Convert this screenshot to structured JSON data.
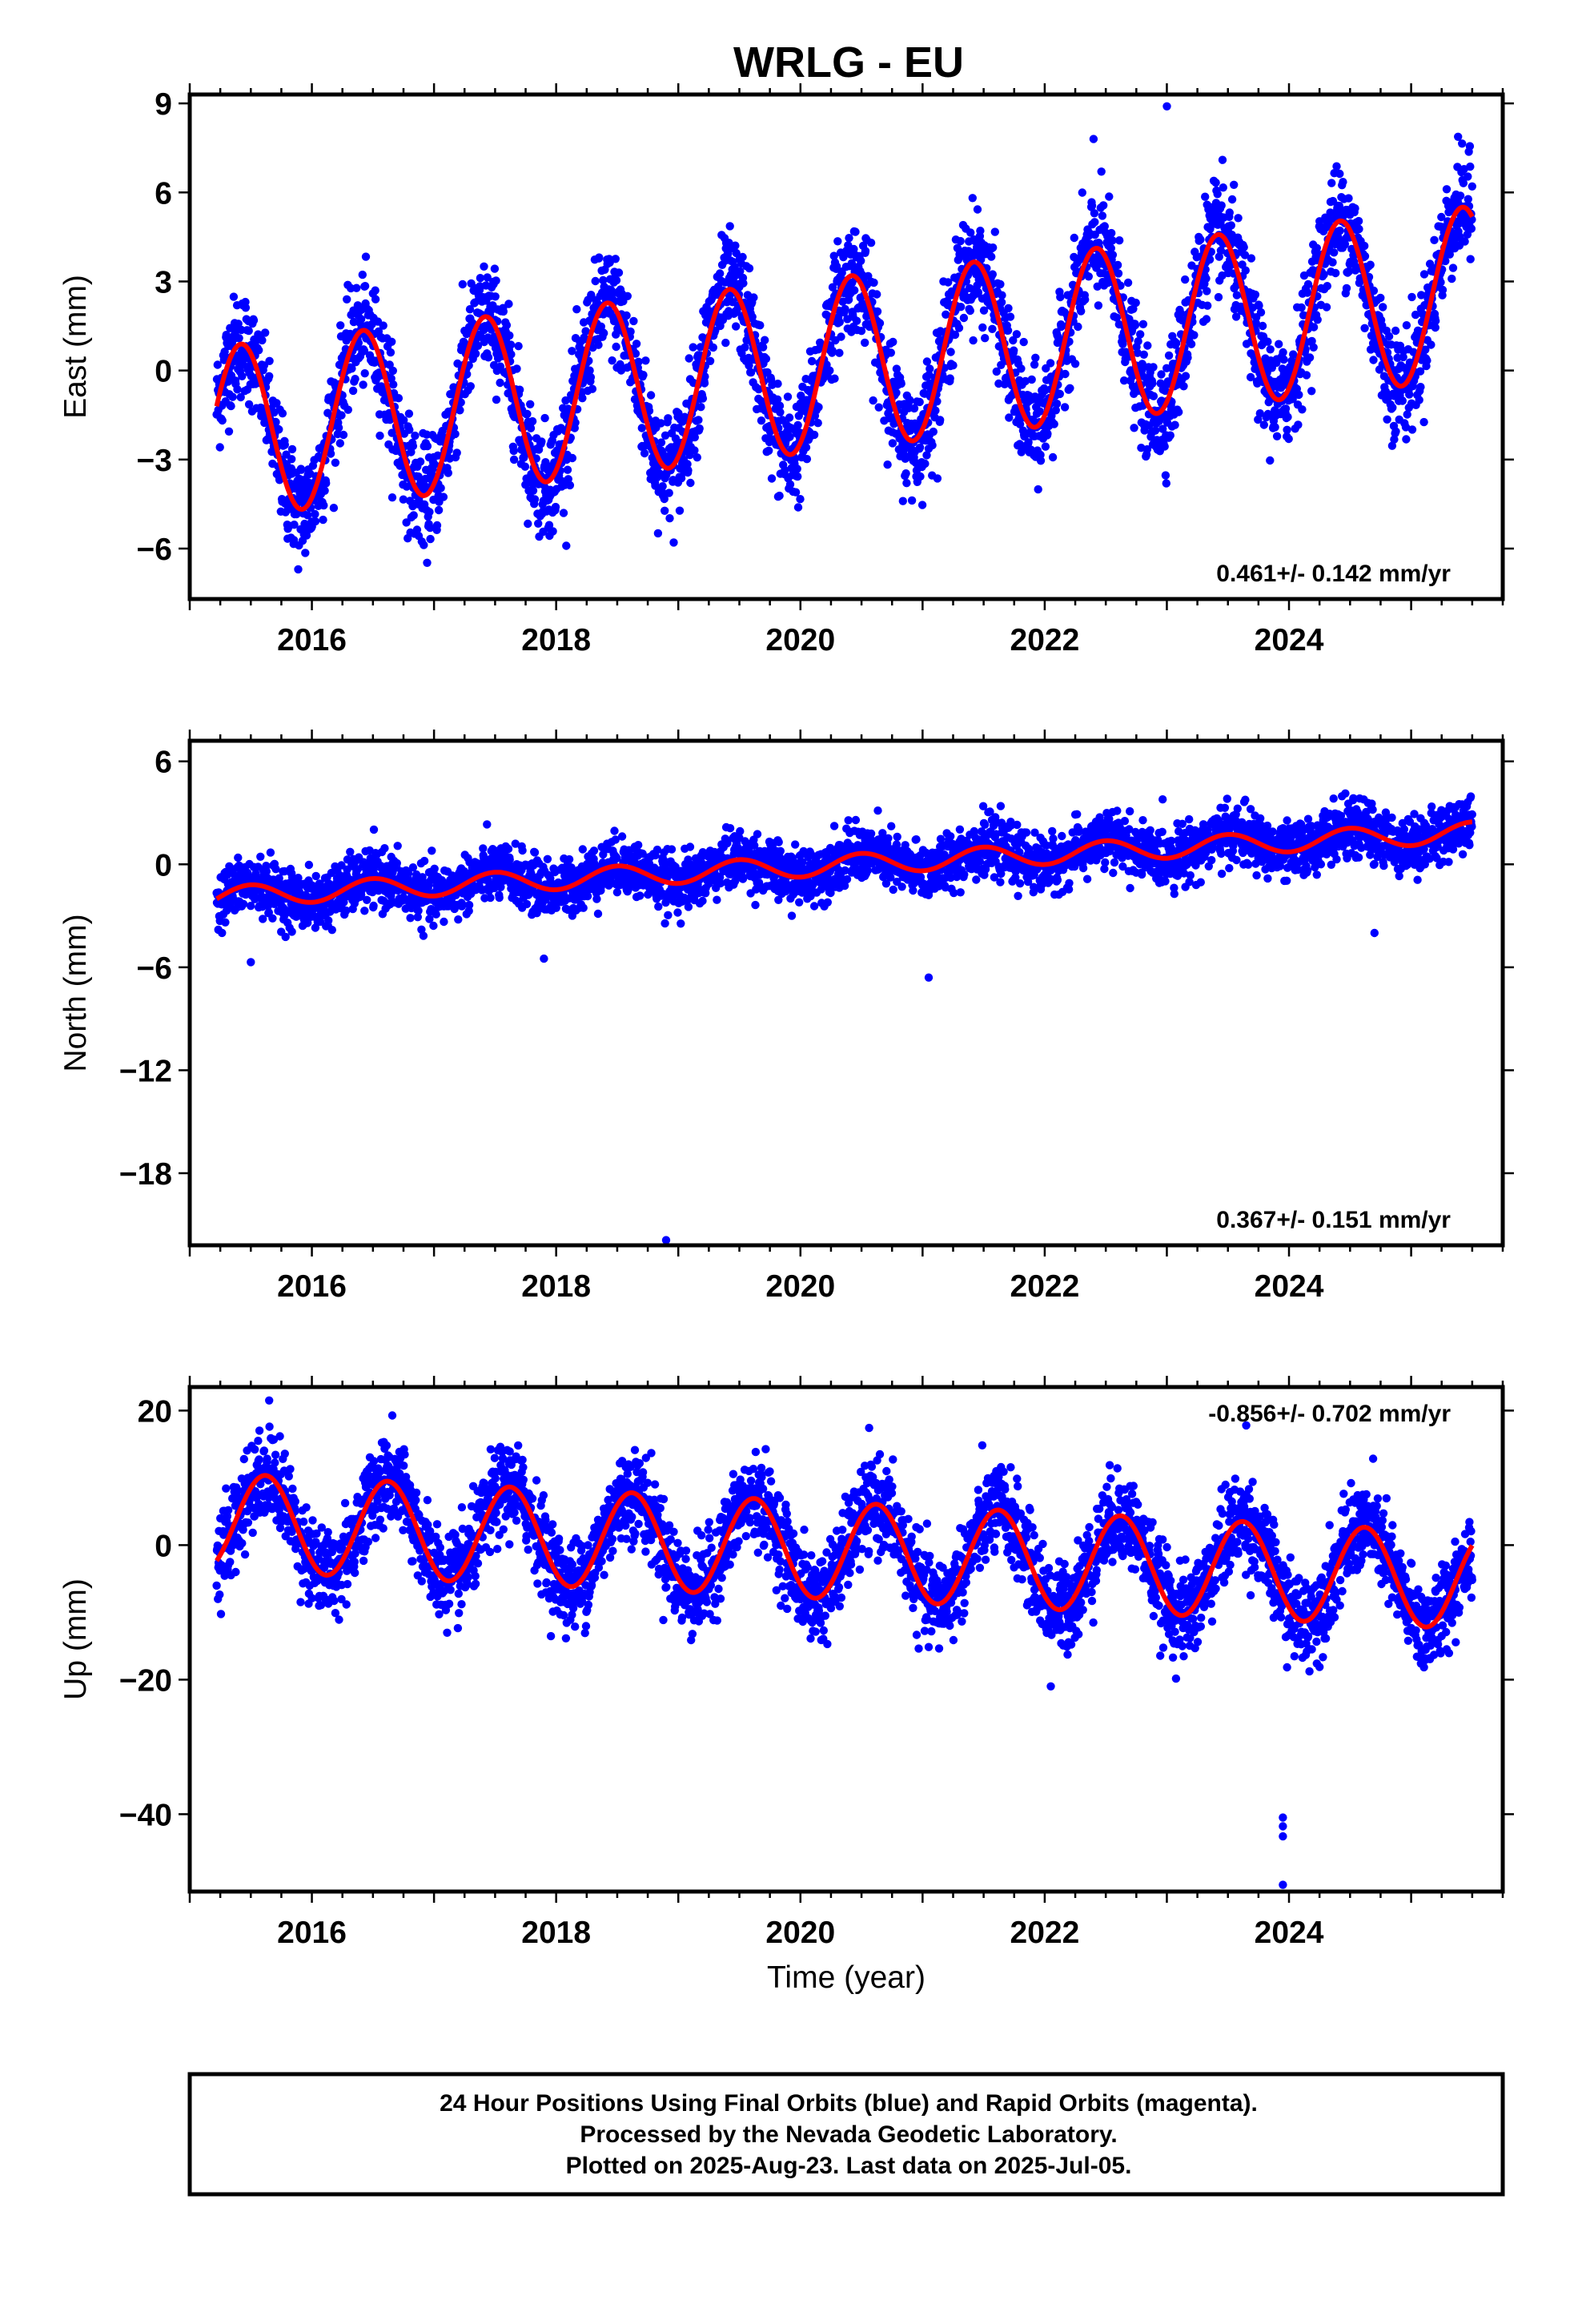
{
  "title": "WRLG - EU",
  "footer": {
    "line1": "24 Hour Positions Using Final Orbits (blue) and Rapid Orbits (magenta).",
    "line2": "Processed by the Nevada Geodetic Laboratory.",
    "line3": "Plotted on 2025-Aug-23. Last data on 2025-Jul-05."
  },
  "colors": {
    "observations": "#0000ff",
    "model": "#ff0000"
  },
  "chart_data": [
    {
      "type": "scatter",
      "ylabel": "East (mm)",
      "xlabel": "",
      "rate_label": "0.461+/- 0.142 mm/yr",
      "xlim": [
        2015.0,
        2025.75
      ],
      "ylim": [
        -7.7,
        9.3
      ],
      "xticks": [
        2016,
        2018,
        2020,
        2022,
        2024
      ],
      "xtick_labels": [
        "2016",
        "2018",
        "2020",
        "2022",
        "2024"
      ],
      "yticks": [
        -6,
        -3,
        0,
        3,
        6,
        9
      ],
      "ytick_labels": [
        "−6",
        "−3",
        "0",
        "3",
        "6",
        "9"
      ],
      "series": [
        {
          "style": "points",
          "x_start": 2015.22,
          "x_end": 2025.5,
          "offset": -2.1,
          "trend": 0.461,
          "amplitude": 2.9,
          "peak_phase": 0.42,
          "noise": 0.9
        },
        {
          "style": "line",
          "x_start": 2015.22,
          "x_end": 2025.5,
          "offset": -2.1,
          "trend": 0.461,
          "amplitude": 2.9,
          "peak_phase": 0.42
        }
      ],
      "outliers": [
        [
          2023.0,
          8.9
        ],
        [
          2022.4,
          7.8
        ]
      ]
    },
    {
      "type": "scatter",
      "ylabel": "North (mm)",
      "xlabel": "",
      "rate_label": "0.367+/- 0.151 mm/yr",
      "xlim": [
        2015.0,
        2025.75
      ],
      "ylim": [
        -22.2,
        7.2
      ],
      "xticks": [
        2016,
        2018,
        2020,
        2022,
        2024
      ],
      "xtick_labels": [
        "2016",
        "2018",
        "2020",
        "2022",
        "2024"
      ],
      "yticks": [
        -18,
        -12,
        -6,
        0,
        6
      ],
      "ytick_labels": [
        "−18",
        "−12",
        "−6",
        "0",
        "6"
      ],
      "series": [
        {
          "style": "points",
          "x_start": 2015.22,
          "x_end": 2025.5,
          "offset": -1.9,
          "trend": 0.367,
          "amplitude": 0.6,
          "peak_phase": 0.5,
          "noise": 0.8
        },
        {
          "style": "line",
          "x_start": 2015.22,
          "x_end": 2025.5,
          "offset": -1.9,
          "trend": 0.367,
          "amplitude": 0.6,
          "peak_phase": 0.5
        }
      ],
      "outliers": [
        [
          2018.9,
          -21.9
        ],
        [
          2021.05,
          -6.6
        ],
        [
          2024.7,
          -4.0
        ],
        [
          2015.5,
          -5.7
        ],
        [
          2017.9,
          -5.5
        ]
      ]
    },
    {
      "type": "scatter",
      "ylabel": "Up (mm)",
      "xlabel": "Time (year)",
      "rate_label": "-0.856+/- 0.702 mm/yr",
      "xlim": [
        2015.0,
        2025.75
      ],
      "ylim": [
        -51.5,
        23.5
      ],
      "xticks": [
        2016,
        2018,
        2020,
        2022,
        2024
      ],
      "xtick_labels": [
        "2016",
        "2018",
        "2020",
        "2022",
        "2024"
      ],
      "yticks": [
        -40,
        -20,
        0,
        20
      ],
      "ytick_labels": [
        "−40",
        "−20",
        "0",
        "20"
      ],
      "series": [
        {
          "style": "points",
          "x_start": 2015.22,
          "x_end": 2025.5,
          "offset": 3.5,
          "trend": -0.856,
          "amplitude": 7.2,
          "peak_phase": 0.62,
          "noise": 3.3
        },
        {
          "style": "line",
          "x_start": 2015.22,
          "x_end": 2025.5,
          "offset": 3.5,
          "trend": -0.856,
          "amplitude": 7.2,
          "peak_phase": 0.62
        }
      ],
      "outliers": [
        [
          2023.95,
          -40.5
        ],
        [
          2023.95,
          -41.8
        ],
        [
          2023.95,
          -43.3
        ],
        [
          2023.95,
          -50.5
        ],
        [
          2015.65,
          21.5
        ],
        [
          2023.65,
          17.8
        ],
        [
          2022.05,
          -21.0
        ]
      ]
    }
  ]
}
